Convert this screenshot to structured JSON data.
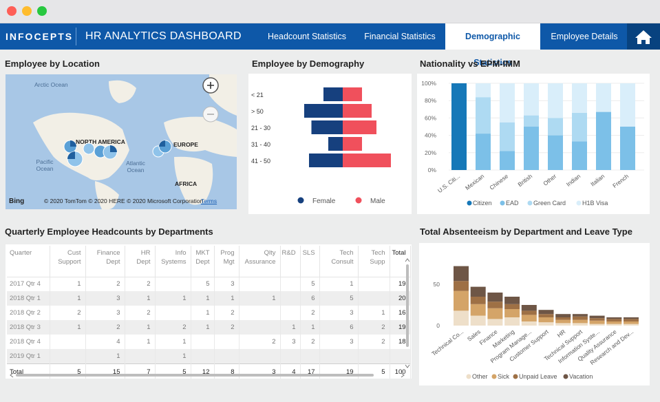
{
  "window": {
    "controls": {
      "close_color": "#fe5f57",
      "minimize_color": "#febc2e",
      "maximize_color": "#28c840"
    }
  },
  "nav": {
    "brand": "INFOCEPTS",
    "title": "HR ANALYTICS DASHBOARD",
    "tabs": [
      {
        "label": "Headcount Statistics",
        "active": false
      },
      {
        "label": "Financial Statistics",
        "active": false
      },
      {
        "label": "Demographic Statistics",
        "active": true
      },
      {
        "label": "Employee Details",
        "active": false
      }
    ],
    "home_icon": "home-icon",
    "accent": "#0e58a8"
  },
  "location": {
    "title": "Employee by Location",
    "oceans": [
      "Arctic Ocean",
      "Pacific Ocean",
      "Atlantic Ocean"
    ],
    "labels": [
      "NORTH AMERICA",
      "EUROPE",
      "AFRICA"
    ],
    "bing": "Bing",
    "copyright": "© 2020 TomTom © 2020 HERE © 2020 Microsoft Corporation",
    "terms": "Terms"
  },
  "demography": {
    "title": "Employee by Demography"
  },
  "nationality": {
    "title": "Nationality vs EPM-IMM"
  },
  "headcount": {
    "title": "Quarterly Employee Headcounts by Departments",
    "columns": [
      "Quarter",
      "Cust Support",
      "Finance Dept",
      "HR Dept",
      "Info Systems",
      "MKT Dept",
      "Prog Mgt",
      "Qlty Assurance",
      "R&D",
      "SLS",
      "Tech Consult",
      "Tech Supp",
      "Total"
    ],
    "rows": [
      [
        "2017 Qtr 4",
        "1",
        "2",
        "2",
        "",
        "5",
        "3",
        "",
        "",
        "5",
        "1",
        "",
        "19"
      ],
      [
        "2018 Qtr 1",
        "1",
        "3",
        "1",
        "1",
        "1",
        "1",
        "1",
        "",
        "6",
        "5",
        "",
        "20"
      ],
      [
        "2018 Qtr 2",
        "2",
        "3",
        "2",
        "",
        "1",
        "2",
        "",
        "",
        "2",
        "3",
        "1",
        "16"
      ],
      [
        "2018 Qtr 3",
        "1",
        "2",
        "1",
        "2",
        "1",
        "2",
        "",
        "1",
        "1",
        "6",
        "2",
        "19"
      ],
      [
        "2018 Qtr 4",
        "",
        "4",
        "1",
        "1",
        "",
        "",
        "2",
        "3",
        "2",
        "3",
        "2",
        "18"
      ],
      [
        "2019 Qtr 1",
        "",
        "1",
        "",
        "1",
        "",
        "",
        "",
        "",
        "",
        "",
        "",
        ""
      ]
    ],
    "total": [
      "Total",
      "5",
      "15",
      "7",
      "5",
      "12",
      "8",
      "3",
      "4",
      "17",
      "19",
      "5",
      "100"
    ]
  },
  "absenteeism": {
    "title": "Total Absenteeism by Department and Leave Type"
  },
  "chart_data": [
    {
      "type": "bar",
      "orientation": "horizontal-diverging",
      "categories": [
        "< 21",
        "> 50",
        "21 - 30",
        "31 - 40",
        "41 - 50"
      ],
      "series": [
        {
          "name": "Female",
          "values": [
            4,
            8,
            6.5,
            3,
            7
          ],
          "color": "#16407e"
        },
        {
          "name": "Male",
          "values": [
            4,
            6,
            7,
            4,
            10
          ],
          "color": "#f0505c"
        }
      ],
      "legend": "bottom"
    },
    {
      "type": "bar",
      "stacked": true,
      "percent": true,
      "categories": [
        "U.S. Citi...",
        "Mexican",
        "Chinese",
        "British",
        "Other",
        "Indian",
        "Italian",
        "French"
      ],
      "series": [
        {
          "name": "Citizen",
          "values": [
            100,
            0,
            0,
            0,
            0,
            0,
            0,
            0
          ],
          "color": "#1678b8"
        },
        {
          "name": "EAD",
          "values": [
            0,
            42,
            22,
            50,
            40,
            33,
            67,
            50
          ],
          "color": "#7cc0e8"
        },
        {
          "name": "Green Card",
          "values": [
            0,
            42,
            33,
            13,
            20,
            33,
            0,
            0
          ],
          "color": "#aedaf2"
        },
        {
          "name": "H1B Visa",
          "values": [
            0,
            16,
            45,
            37,
            40,
            34,
            33,
            50
          ],
          "color": "#d9eefa"
        }
      ],
      "yticks": [
        "0%",
        "20%",
        "40%",
        "60%",
        "80%",
        "100%"
      ],
      "ylim": [
        0,
        100
      ],
      "grid": true,
      "legend": "bottom"
    },
    {
      "type": "bar",
      "stacked": true,
      "categories": [
        "Technical Co...",
        "Sales",
        "Finance",
        "Marketing",
        "Program Manage...",
        "Customer Support",
        "HR",
        "Technical Support",
        "Information Syste...",
        "Quality Assurance",
        "Research and Dev..."
      ],
      "series": [
        {
          "name": "Other",
          "values": [
            18,
            12,
            8,
            10,
            5,
            4,
            3,
            3,
            2,
            2,
            2
          ],
          "color": "#eedfc9"
        },
        {
          "name": "Sick",
          "values": [
            24,
            14,
            13,
            10,
            8,
            6,
            4,
            4,
            4,
            3,
            3
          ],
          "color": "#d4a468"
        },
        {
          "name": "Unpaid Leave",
          "values": [
            12,
            9,
            8,
            6,
            5,
            4,
            3,
            4,
            3,
            3,
            3
          ],
          "color": "#9e7045"
        },
        {
          "name": "Vacation",
          "values": [
            18,
            12,
            11,
            9,
            7,
            5,
            4,
            3,
            3,
            2,
            2
          ],
          "color": "#6e5646"
        }
      ],
      "yticks": [
        "0",
        "50"
      ],
      "ylim": [
        0,
        100
      ],
      "legend": "bottom"
    }
  ]
}
